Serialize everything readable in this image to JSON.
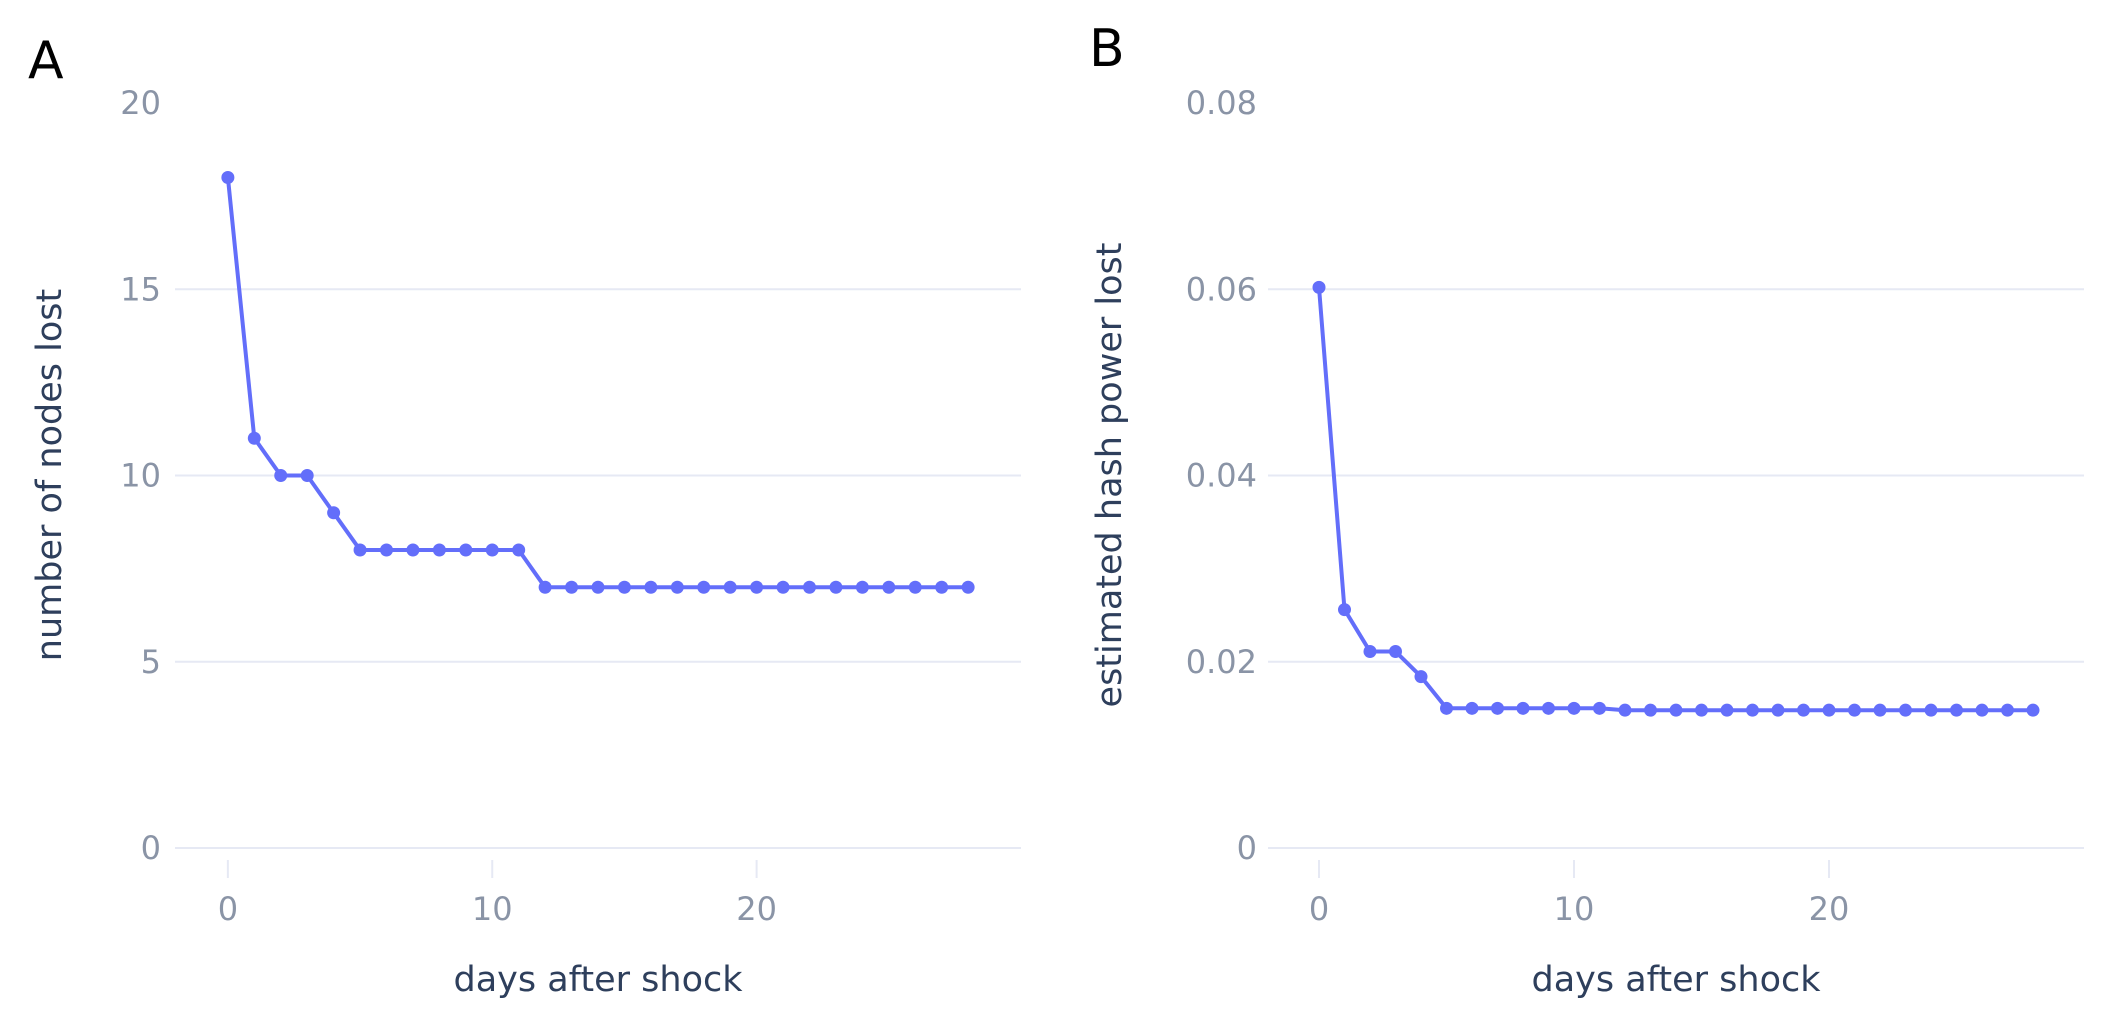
{
  "colors": {
    "series": "#636efa",
    "grid": "#e6e9f4",
    "tick_text": "#8a94a6",
    "axis_title": "#2e3f5c"
  },
  "chart_data": [
    {
      "type": "line",
      "panel_label": "A",
      "xlabel": "days after shock",
      "ylabel": "number of nodes lost",
      "xlim": [
        -2,
        30
      ],
      "ylim": [
        0,
        20
      ],
      "xticks": [
        0,
        10,
        20
      ],
      "xtick_labels": [
        "0",
        "10",
        "20"
      ],
      "yticks": [
        0,
        5,
        10,
        15,
        20
      ],
      "ytick_labels": [
        "0",
        "5",
        "10",
        "15",
        "20"
      ],
      "grid": true,
      "legend": "none",
      "x": [
        0,
        1,
        2,
        3,
        4,
        5,
        6,
        7,
        8,
        9,
        10,
        11,
        12,
        13,
        14,
        15,
        16,
        17,
        18,
        19,
        20,
        21,
        22,
        23,
        24,
        25,
        26,
        27,
        28
      ],
      "y": [
        18,
        11,
        10,
        10,
        9,
        8,
        8,
        8,
        8,
        8,
        8,
        8,
        7,
        7,
        7,
        7,
        7,
        7,
        7,
        7,
        7,
        7,
        7,
        7,
        7,
        7,
        7,
        7,
        7
      ]
    },
    {
      "type": "line",
      "panel_label": "B",
      "xlabel": "days after shock",
      "ylabel": "estimated hash power lost",
      "xlim": [
        -2,
        30
      ],
      "ylim": [
        0,
        0.08
      ],
      "xticks": [
        0,
        10,
        20
      ],
      "xtick_labels": [
        "0",
        "10",
        "20"
      ],
      "yticks": [
        0,
        0.02,
        0.04,
        0.06,
        0.08
      ],
      "ytick_labels": [
        "0",
        "0.02",
        "0.04",
        "0.06",
        "0.08"
      ],
      "grid": true,
      "legend": "none",
      "x": [
        0,
        1,
        2,
        3,
        4,
        5,
        6,
        7,
        8,
        9,
        10,
        11,
        12,
        13,
        14,
        15,
        16,
        17,
        18,
        19,
        20,
        21,
        22,
        23,
        24,
        25,
        26,
        27,
        28
      ],
      "y": [
        0.0602,
        0.0256,
        0.0211,
        0.0211,
        0.0184,
        0.015,
        0.015,
        0.015,
        0.015,
        0.015,
        0.015,
        0.015,
        0.0148,
        0.0148,
        0.0148,
        0.0148,
        0.0148,
        0.0148,
        0.0148,
        0.0148,
        0.0148,
        0.0148,
        0.0148,
        0.0148,
        0.0148,
        0.0148,
        0.0148,
        0.0148,
        0.0148
      ]
    }
  ]
}
